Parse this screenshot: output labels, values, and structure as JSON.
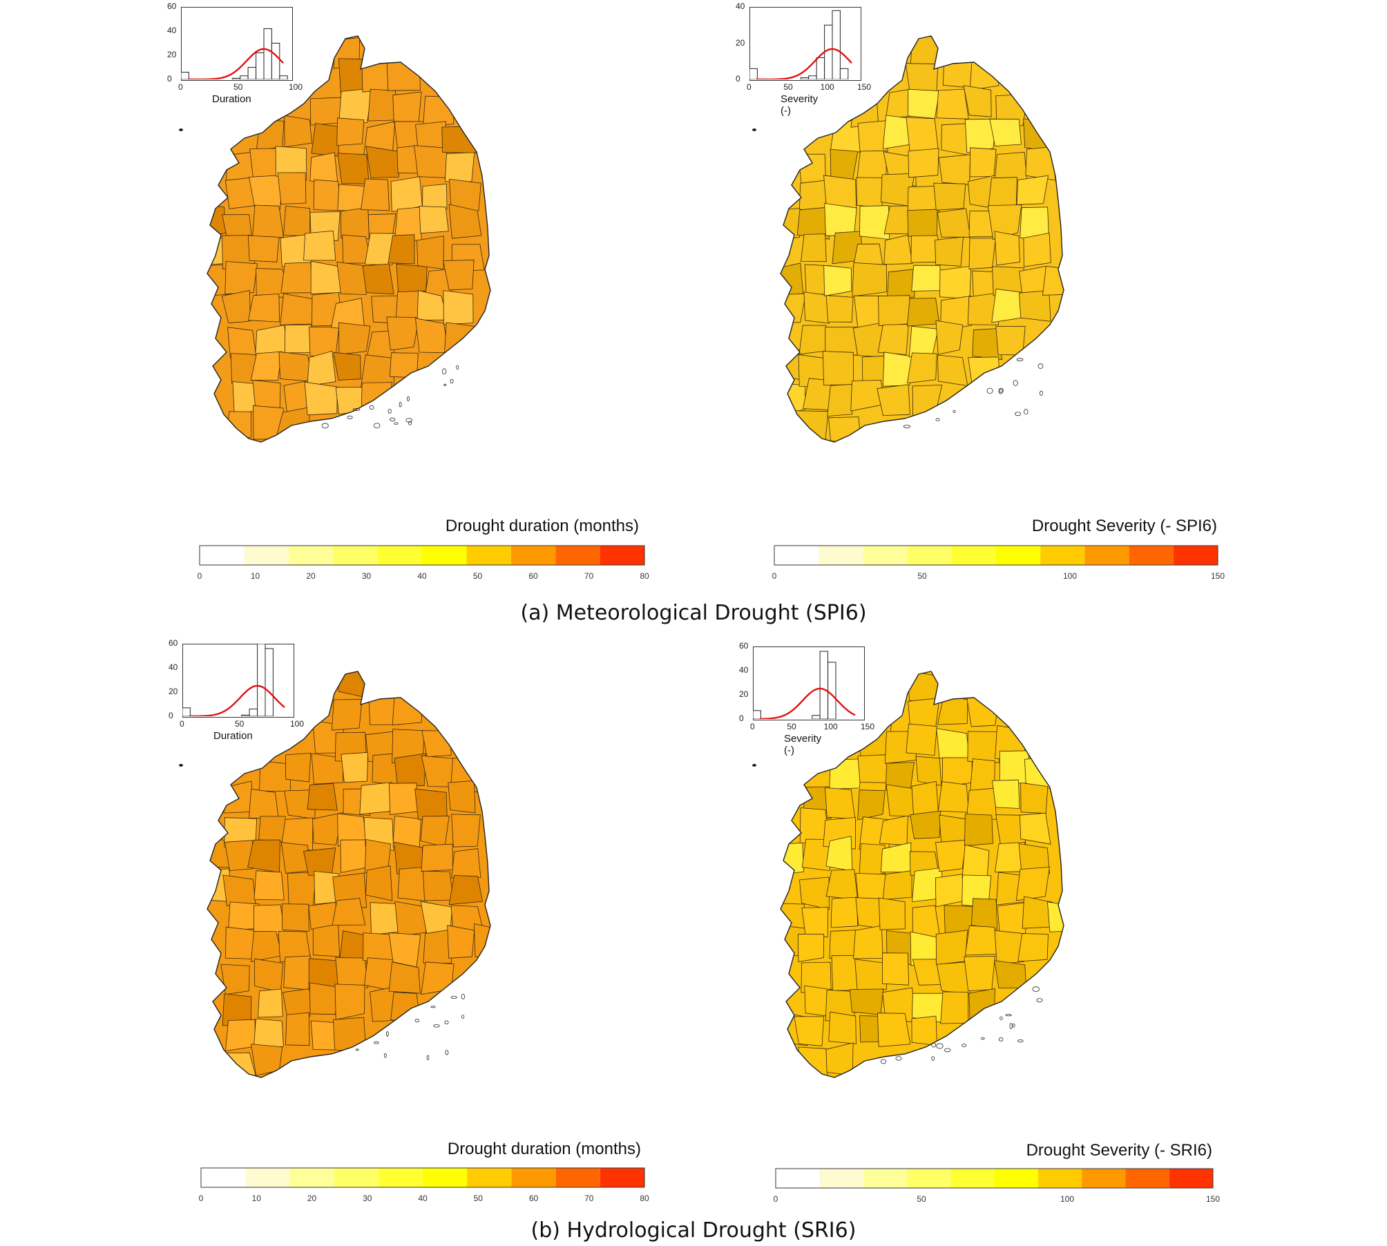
{
  "figure": {
    "caption_a": "(a) Meteorological Drought (SPI6)",
    "caption_b": "(b) Hydrological Drought (SRI6)",
    "colors": [
      "#ffffff",
      "#fffbd0",
      "#ffff9a",
      "#ffff66",
      "#ffff32",
      "#ffff00",
      "#ffcc00",
      "#ff9900",
      "#ff6600",
      "#ff3300"
    ]
  },
  "panels": [
    {
      "id": "a-duration",
      "legend_title": "Drought duration (months)",
      "legend_ticks": [
        "0",
        "10",
        "20",
        "30",
        "40",
        "50",
        "60",
        "70",
        "80"
      ],
      "legend_range": [
        0,
        80
      ],
      "inset_xlabel": "Duration",
      "inset_xticks": [
        "0",
        "50",
        "100"
      ],
      "inset_yticks": [
        "0",
        "20",
        "40",
        "60"
      ],
      "dominant_color": "#f39c1a",
      "hist_counts": [
        6,
        0,
        0,
        0,
        0,
        0,
        1,
        3,
        10,
        22,
        42,
        30,
        3
      ],
      "hist_ymax": 60
    },
    {
      "id": "a-severity",
      "legend_title": "Drought  Severity (- SPI6)",
      "legend_ticks": [
        "0",
        "50",
        "100",
        "150"
      ],
      "legend_range": [
        0,
        150
      ],
      "inset_xlabel": "Severity (-)",
      "inset_xticks": [
        "0",
        "50",
        "100",
        "150"
      ],
      "inset_yticks": [
        "0",
        "20",
        "40"
      ],
      "dominant_color": "#f8c31a",
      "hist_counts": [
        6,
        0,
        0,
        0,
        0,
        0,
        1,
        2,
        12,
        30,
        38,
        6,
        0
      ],
      "hist_ymax": 40
    },
    {
      "id": "b-duration",
      "legend_title": "Drought duration (months)",
      "legend_ticks": [
        "0",
        "10",
        "20",
        "30",
        "40",
        "50",
        "60",
        "70",
        "80"
      ],
      "legend_range": [
        0,
        80
      ],
      "inset_xlabel": "Duration",
      "inset_xticks": [
        "0",
        "50",
        "100"
      ],
      "inset_yticks": [
        "0",
        "20",
        "40",
        "60"
      ],
      "dominant_color": "#f49a12",
      "hist_counts": [
        7,
        0,
        0,
        0,
        0,
        0,
        0,
        1,
        6,
        60,
        56,
        0,
        0
      ],
      "hist_ymax": 60
    },
    {
      "id": "b-severity",
      "legend_title": "Drought  Severity (- SRI6)",
      "legend_ticks": [
        "0",
        "50",
        "100",
        "150"
      ],
      "legend_range": [
        0,
        150
      ],
      "inset_xlabel": "Severity (-)",
      "inset_xticks": [
        "0",
        "50",
        "100",
        "150"
      ],
      "inset_yticks": [
        "0",
        "20",
        "40",
        "60"
      ],
      "dominant_color": "#fbc20c",
      "hist_counts": [
        7,
        0,
        0,
        0,
        0,
        0,
        0,
        3,
        56,
        47,
        0,
        0,
        0
      ],
      "hist_ymax": 60
    }
  ]
}
